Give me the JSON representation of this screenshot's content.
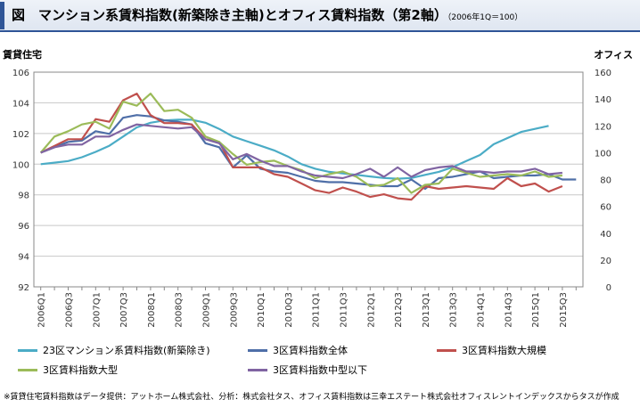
{
  "header": {
    "title": "図　マンション系賃料指数(新築除き主軸)とオフィス賃料指数（第2軸）",
    "note": "（2006年1Q＝100）"
  },
  "chart_data": {
    "type": "line",
    "left_axis_title": "賃貸住宅",
    "right_axis_title": "オフィス",
    "ylim": [
      92,
      106
    ],
    "yticks": [
      92,
      94,
      96,
      98,
      100,
      102,
      104,
      106
    ],
    "y2lim": [
      0,
      160
    ],
    "y2ticks": [
      0,
      20,
      40,
      60,
      80,
      100,
      120,
      140,
      160
    ],
    "grid": true,
    "legend_position": "bottom",
    "x": [
      "2006Q1",
      "2006Q2",
      "2006Q3",
      "2006Q4",
      "2007Q1",
      "2007Q2",
      "2007Q3",
      "2007Q4",
      "2008Q1",
      "2008Q2",
      "2008Q3",
      "2008Q4",
      "2009Q1",
      "2009Q2",
      "2009Q3",
      "2009Q4",
      "2010Q1",
      "2010Q2",
      "2010Q3",
      "2010Q4",
      "2011Q1",
      "2011Q2",
      "2011Q3",
      "2011Q4",
      "2012Q1",
      "2012Q2",
      "2012Q3",
      "2012Q4",
      "2013Q1",
      "2013Q2",
      "2013Q3",
      "2013Q4",
      "2014Q1",
      "2014Q2",
      "2014Q3",
      "2014Q4",
      "2015Q1",
      "2015Q2",
      "2015Q3",
      "2015Q4"
    ],
    "x_tick_labels": [
      "2006Q1",
      "2006Q3",
      "2007Q1",
      "2007Q3",
      "2008Q1",
      "2008Q3",
      "2009Q1",
      "2009Q3",
      "2010Q1",
      "2010Q3",
      "2011Q1",
      "2011Q3",
      "2012Q1",
      "2012Q3",
      "2013Q1",
      "2013Q3",
      "2014Q1",
      "2014Q3",
      "2015Q1",
      "2015Q3"
    ],
    "series": [
      {
        "name": "23区マンション系賃料指数(新築除き)",
        "axis": "left",
        "color": "#4bacc6",
        "values": [
          100.0,
          100.1,
          100.2,
          100.45,
          100.8,
          101.2,
          101.8,
          102.4,
          102.7,
          102.85,
          102.9,
          102.9,
          102.7,
          102.3,
          101.8,
          101.5,
          101.2,
          100.9,
          100.5,
          100.0,
          99.7,
          99.5,
          99.4,
          99.3,
          99.2,
          99.1,
          99.05,
          99.1,
          99.3,
          99.5,
          99.8,
          100.2,
          100.6,
          101.3,
          101.7,
          102.1,
          102.3,
          102.5,
          null,
          null
        ]
      },
      {
        "name": "3区賃料指数全体",
        "axis": "right",
        "color": "#4f6fa8",
        "values": [
          100,
          104,
          108,
          109,
          116,
          114,
          126,
          128,
          127,
          124,
          123,
          121,
          107,
          104,
          89,
          98,
          88,
          86,
          85,
          82,
          79,
          78,
          78,
          77,
          76,
          75,
          75,
          80,
          73,
          81,
          82,
          84,
          86,
          81,
          82,
          83,
          83,
          84,
          80,
          80
        ]
      },
      {
        "name": "3区賃料指数大規模",
        "axis": "right",
        "color": "#c0504d",
        "values": [
          100,
          105,
          110,
          110,
          125,
          123,
          139,
          144,
          128,
          122,
          122,
          121,
          110,
          108,
          89,
          89,
          89,
          84,
          82,
          77,
          72,
          70,
          74,
          71,
          67,
          69,
          66,
          65,
          75,
          73,
          74,
          75,
          74,
          73,
          81,
          75,
          77,
          71,
          75,
          null
        ]
      },
      {
        "name": "3区賃料指数大型",
        "axis": "right",
        "color": "#9bbb59",
        "values": [
          100,
          112,
          116,
          121,
          123,
          118,
          138,
          135,
          144,
          131,
          132,
          126,
          112,
          108,
          99,
          91,
          93,
          94,
          90,
          87,
          81,
          84,
          86,
          82,
          75,
          76,
          81,
          70,
          76,
          77,
          88,
          85,
          82,
          83,
          84,
          83,
          86,
          82,
          83,
          null
        ]
      },
      {
        "name": "3区賃料指数中型以下",
        "axis": "right",
        "color": "#8064a2",
        "values": [
          100,
          104,
          106,
          106,
          112,
          112,
          117,
          121,
          120,
          119,
          118,
          119,
          110,
          107,
          95,
          99,
          94,
          90,
          90,
          86,
          83,
          82,
          81,
          84,
          88,
          82,
          89,
          82,
          87,
          89,
          90,
          86,
          86,
          85,
          86,
          86,
          88,
          84,
          85,
          null
        ]
      }
    ]
  },
  "footnote": "※賃貸住宅賃料指数はデータ提供：アットホーム株式会社、分析：株式会社タス、オフィス賃料指数は三幸エステート株式会社オフィスレントインデックスからタスが作成"
}
